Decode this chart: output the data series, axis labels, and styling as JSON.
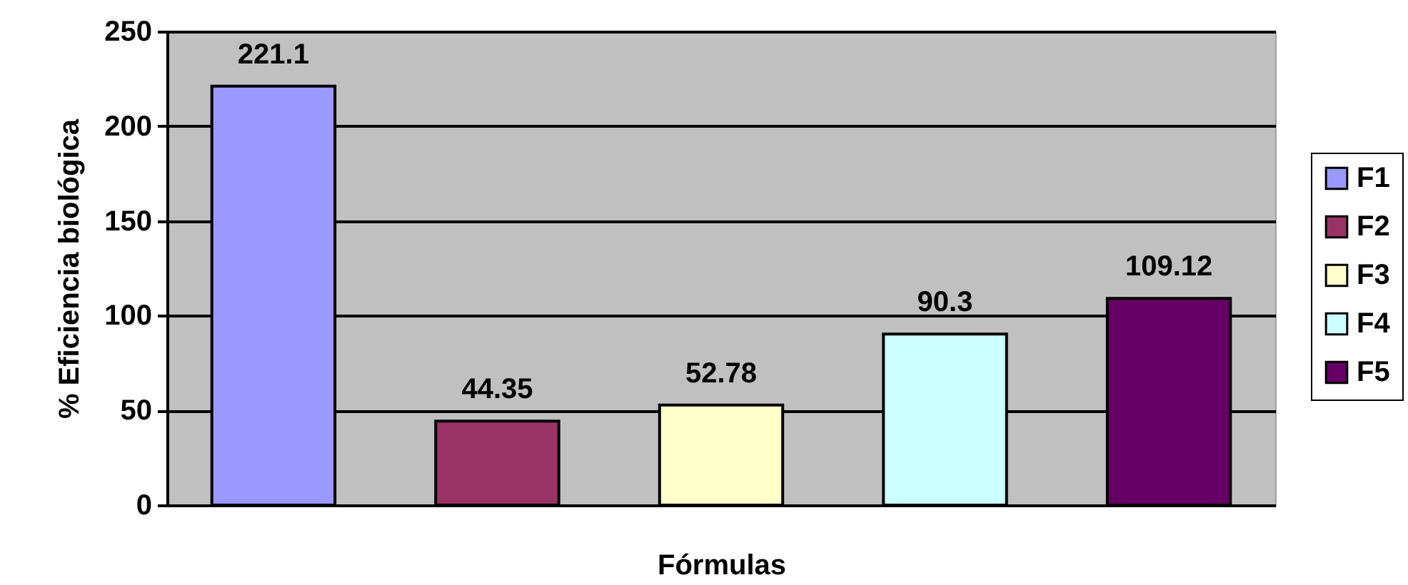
{
  "chart_data": {
    "type": "bar",
    "xlabel": "Fórmulas",
    "ylabel": "% Eficiencia biológica",
    "categories": [
      null,
      null,
      null,
      null,
      null
    ],
    "series": [
      {
        "name": "F1",
        "color": "#9999ff",
        "values": [
          221.1,
          null,
          null,
          null,
          null
        ]
      },
      {
        "name": "F2",
        "color": "#993366",
        "values": [
          null,
          44.35,
          null,
          null,
          null
        ]
      },
      {
        "name": "F3",
        "color": "#ffffcc",
        "values": [
          null,
          null,
          52.78,
          null,
          null
        ]
      },
      {
        "name": "F4",
        "color": "#ccffff",
        "values": [
          null,
          null,
          null,
          90.3,
          null
        ]
      },
      {
        "name": "F5",
        "color": "#660066",
        "values": [
          null,
          null,
          null,
          null,
          109.12
        ]
      }
    ],
    "ylim": [
      0,
      250
    ],
    "yticks": [
      0,
      50,
      100,
      150,
      200,
      250
    ],
    "grid": "y",
    "legend": "right",
    "data_labels": true
  }
}
